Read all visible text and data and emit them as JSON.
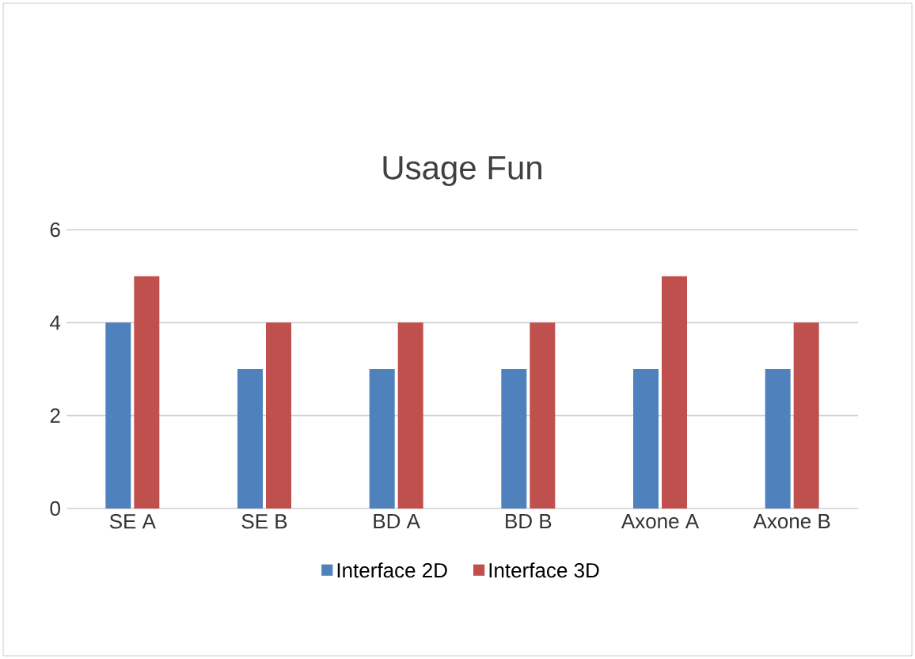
{
  "chart_data": {
    "type": "bar",
    "title": "Usage Fun",
    "categories": [
      "SE A",
      "SE B",
      "BD A",
      "BD B",
      "Axone A",
      "Axone B"
    ],
    "series": [
      {
        "name": "Interface 2D",
        "color": "#4f81bd",
        "values": [
          4,
          3,
          3,
          3,
          3,
          3
        ]
      },
      {
        "name": "Interface 3D",
        "color": "#c0504d",
        "values": [
          5,
          4,
          4,
          4,
          5,
          4
        ]
      }
    ],
    "ylim": [
      0,
      6
    ],
    "yticks": [
      0,
      2,
      4,
      6
    ],
    "grid": "y",
    "legend": "bottom"
  }
}
